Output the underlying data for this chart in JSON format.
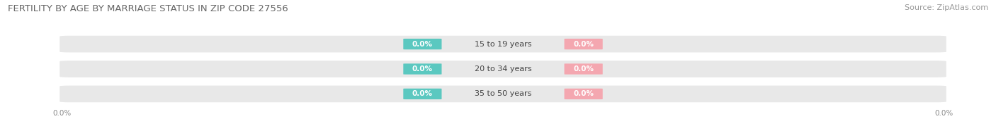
{
  "title": "FERTILITY BY AGE BY MARRIAGE STATUS IN ZIP CODE 27556",
  "source": "Source: ZipAtlas.com",
  "categories": [
    "15 to 19 years",
    "20 to 34 years",
    "35 to 50 years"
  ],
  "married_values": [
    0.0,
    0.0,
    0.0
  ],
  "unmarried_values": [
    0.0,
    0.0,
    0.0
  ],
  "married_color": "#5BC8C0",
  "unmarried_color": "#F4A7B0",
  "bar_bg_color": "#E8E8E8",
  "title_fontsize": 9.5,
  "source_fontsize": 8,
  "label_fontsize": 7.5,
  "category_fontsize": 8,
  "xlim": [
    -1,
    1
  ],
  "bar_height": 0.62,
  "bg_color": "#FFFFFF",
  "axis_label_color": "#888888"
}
